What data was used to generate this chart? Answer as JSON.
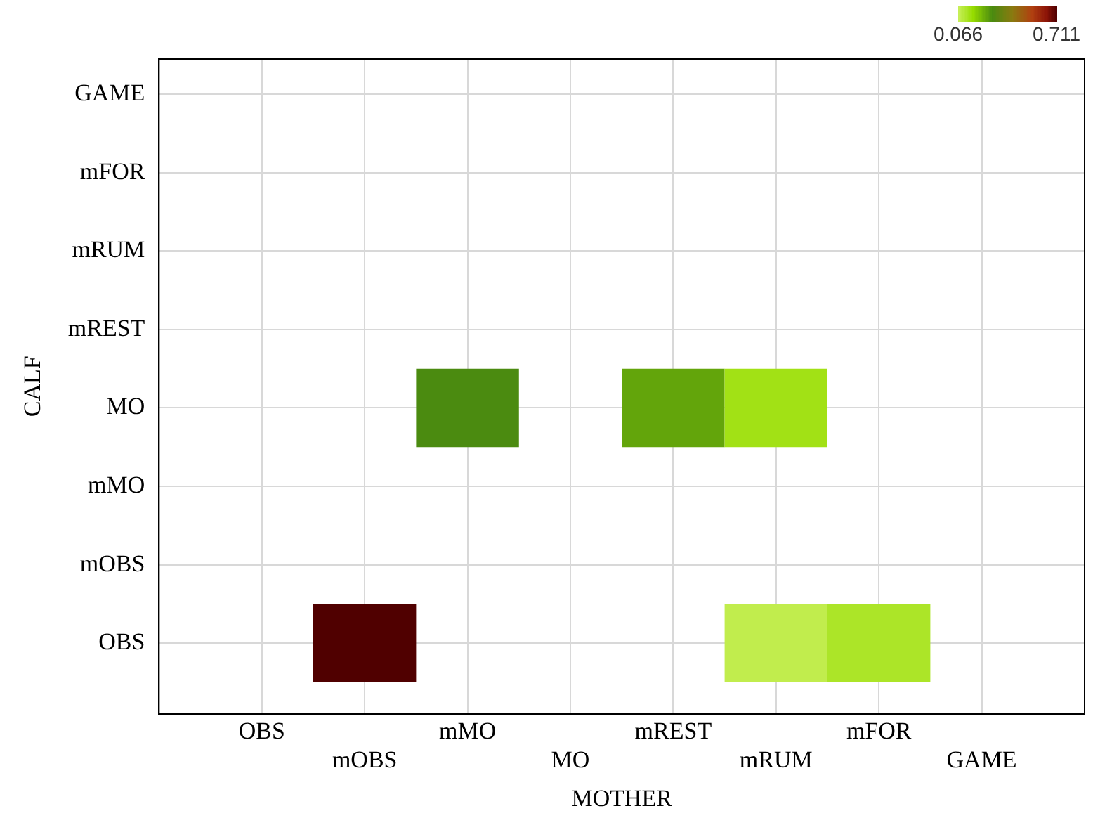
{
  "chart_data": {
    "type": "heatmap",
    "xlabel": "MOTHER",
    "ylabel": "CALF",
    "categories": [
      "OBS",
      "mOBS",
      "mMO",
      "MO",
      "mREST",
      "mRUM",
      "mFOR",
      "GAME"
    ],
    "y_categories": [
      "GAME",
      "mFOR",
      "mRUM",
      "mREST",
      "MO",
      "mMO",
      "mOBS",
      "OBS"
    ],
    "cells": [
      [
        null,
        null,
        null,
        null,
        null,
        null,
        null,
        null
      ],
      [
        null,
        null,
        null,
        null,
        null,
        null,
        null,
        null
      ],
      [
        null,
        null,
        null,
        null,
        null,
        null,
        null,
        null
      ],
      [
        null,
        null,
        null,
        null,
        null,
        null,
        null,
        null
      ],
      [
        null,
        null,
        0.29,
        null,
        0.25,
        0.14,
        null,
        null
      ],
      [
        null,
        null,
        null,
        null,
        null,
        null,
        null,
        null
      ],
      [
        null,
        null,
        null,
        null,
        null,
        null,
        null,
        null
      ],
      [
        null,
        0.711,
        null,
        null,
        null,
        0.08,
        0.12,
        null
      ]
    ],
    "clim": [
      0.066,
      0.711
    ],
    "cticks": [
      0.066,
      0.711
    ],
    "grid": true
  }
}
